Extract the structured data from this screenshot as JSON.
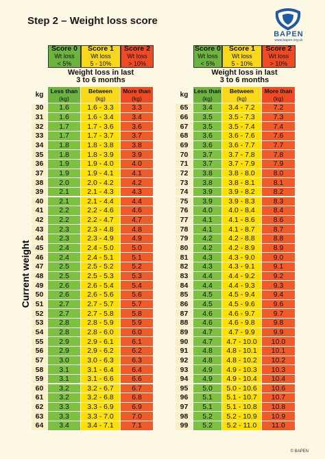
{
  "header": {
    "title": "Step 2 – Weight loss score",
    "logo": "BAPEN",
    "logo_url": "www.bapen.org.uk"
  },
  "scores": [
    {
      "label": "Score 0",
      "line1": "Wt loss",
      "line2": "< 5%"
    },
    {
      "label": "Score 1",
      "line1": "Wt loss",
      "line2": "5 - 10%"
    },
    {
      "label": "Score 2",
      "line1": "Wt loss",
      "line2": "> 10%"
    }
  ],
  "subtitle": [
    "Weight loss in last",
    "3 to 6 months"
  ],
  "columns": [
    {
      "label": "kg"
    },
    {
      "label": "Less than",
      "unit": "(kg)"
    },
    {
      "label": "Between",
      "unit": "(kg)"
    },
    {
      "label": "More than",
      "unit": "(kg)"
    }
  ],
  "axis_label": "Current weight",
  "tables": [
    {
      "rows": [
        [
          "30",
          "1.6",
          "1.6 - 3.3",
          "3.3"
        ],
        [
          "31",
          "1.6",
          "1.6 - 3.4",
          "3.4"
        ],
        [
          "32",
          "1.7",
          "1.7 - 3.6",
          "3.6"
        ],
        [
          "33",
          "1.7",
          "1.7 - 3.7",
          "3.7"
        ],
        [
          "34",
          "1.8",
          "1.8 - 3.8",
          "3.8"
        ],
        [
          "35",
          "1.8",
          "1.8 - 3.9",
          "3.9"
        ],
        [
          "36",
          "1.9",
          "1.9 - 4.0",
          "4.0"
        ],
        [
          "37",
          "1.9",
          "1.9 - 4.1",
          "4.1"
        ],
        [
          "38",
          "2.0",
          "2.0 - 4.2",
          "4.2"
        ],
        [
          "39",
          "2.1",
          "2.1 - 4.3",
          "4.3"
        ],
        [
          "40",
          "2.1",
          "2.1 - 4.4",
          "4.4"
        ],
        [
          "41",
          "2.2",
          "2.2 - 4.6",
          "4.6"
        ],
        [
          "42",
          "2.2",
          "2.2 - 4.7",
          "4.7"
        ],
        [
          "43",
          "2.3",
          "2.3 - 4.8",
          "4.8"
        ],
        [
          "44",
          "2.3",
          "2.3 - 4.9",
          "4.9"
        ],
        [
          "45",
          "2.4",
          "2.4 - 5.0",
          "5.0"
        ],
        [
          "46",
          "2.4",
          "2.4 - 5.1",
          "5.1"
        ],
        [
          "47",
          "2.5",
          "2.5 - 5.2",
          "5.2"
        ],
        [
          "48",
          "2.5",
          "2.5 - 5.3",
          "5.3"
        ],
        [
          "49",
          "2.6",
          "2.6 - 5.4",
          "5.4"
        ],
        [
          "50",
          "2.6",
          "2.6 - 5.6",
          "5.6"
        ],
        [
          "51",
          "2.7",
          "2.7 - 5.7",
          "5.7"
        ],
        [
          "52",
          "2.7",
          "2.7 - 5.8",
          "5.8"
        ],
        [
          "53",
          "2.8",
          "2.8 - 5.9",
          "5.9"
        ],
        [
          "54",
          "2.8",
          "2.8 - 6.0",
          "6.0"
        ],
        [
          "55",
          "2.9",
          "2.9 - 6.1",
          "6.1"
        ],
        [
          "56",
          "2.9",
          "2.9 - 6.2",
          "6.2"
        ],
        [
          "57",
          "3.0",
          "3.0 - 6.3",
          "6.3"
        ],
        [
          "58",
          "3.1",
          "3.1 - 6.4",
          "6.4"
        ],
        [
          "59",
          "3.1",
          "3.1 - 6.6",
          "6.6"
        ],
        [
          "60",
          "3.2",
          "3.2 - 6.7",
          "6.7"
        ],
        [
          "61",
          "3.2",
          "3.2 - 6.8",
          "6.8"
        ],
        [
          "62",
          "3.3",
          "3.3 - 6.9",
          "6.9"
        ],
        [
          "63",
          "3.3",
          "3.3 - 7.0",
          "7.0"
        ],
        [
          "64",
          "3.4",
          "3.4 - 7.1",
          "7.1"
        ]
      ]
    },
    {
      "rows": [
        [
          "65",
          "3.4",
          "3.4 - 7.2",
          "7.2"
        ],
        [
          "66",
          "3.5",
          "3.5 - 7.3",
          "7.3"
        ],
        [
          "67",
          "3.5",
          "3.5 - 7.4",
          "7.4"
        ],
        [
          "68",
          "3.6",
          "3.6 - 7.6",
          "7.6"
        ],
        [
          "69",
          "3.6",
          "3.6 - 7.7",
          "7.7"
        ],
        [
          "70",
          "3.7",
          "3.7 - 7.8",
          "7.8"
        ],
        [
          "71",
          "3.7",
          "3.7 - 7.9",
          "7.9"
        ],
        [
          "72",
          "3.8",
          "3.8 - 8.0",
          "8.0"
        ],
        [
          "73",
          "3.8",
          "3.8 - 8.1",
          "8.1"
        ],
        [
          "74",
          "3.9",
          "3.9 - 8.2",
          "8.2"
        ],
        [
          "75",
          "3.9",
          "3.9 - 8.3",
          "8.3"
        ],
        [
          "76",
          "4.0",
          "4.0 - 8.4",
          "8.4"
        ],
        [
          "77",
          "4.1",
          "4.1 - 8.6",
          "8.6"
        ],
        [
          "78",
          "4.1",
          "4.1 - 8.7",
          "8.7"
        ],
        [
          "79",
          "4.2",
          "4.2 - 8.8",
          "8.8"
        ],
        [
          "80",
          "4.2",
          "4.2 - 8.9",
          "8.9"
        ],
        [
          "81",
          "4.3",
          "4.3 - 9.0",
          "9.0"
        ],
        [
          "82",
          "4.3",
          "4.3 - 9.1",
          "9.1"
        ],
        [
          "83",
          "4.4",
          "4.4 - 9.2",
          "9.2"
        ],
        [
          "84",
          "4.4",
          "4.4 - 9.3",
          "9.3"
        ],
        [
          "85",
          "4.5",
          "4.5 - 9.4",
          "9.4"
        ],
        [
          "86",
          "4.5",
          "4.5 - 9.6",
          "9.6"
        ],
        [
          "87",
          "4.6",
          "4.6 - 9.7",
          "9.7"
        ],
        [
          "88",
          "4.6",
          "4.6 - 9.8",
          "9.8"
        ],
        [
          "89",
          "4.7",
          "4.7 - 9.9",
          "9.9"
        ],
        [
          "90",
          "4.7",
          "4.7 - 10.0",
          "10.0"
        ],
        [
          "91",
          "4.8",
          "4.8 - 10.1",
          "10.1"
        ],
        [
          "92",
          "4.8",
          "4.8 - 10.2",
          "10.2"
        ],
        [
          "93",
          "4.9",
          "4.9 - 10.3",
          "10.3"
        ],
        [
          "94",
          "4.9",
          "4.9 - 10.4",
          "10.4"
        ],
        [
          "95",
          "5.0",
          "5.0 - 10.6",
          "10.6"
        ],
        [
          "96",
          "5.1",
          "5.1 - 10.7",
          "10.7"
        ],
        [
          "97",
          "5.1",
          "5.1 - 10.8",
          "10.8"
        ],
        [
          "98",
          "5.2",
          "5.2 - 10.9",
          "10.9"
        ],
        [
          "99",
          "5.2",
          "5.2 - 11.0",
          "11.0"
        ]
      ]
    }
  ],
  "footer": "© BAPEN"
}
